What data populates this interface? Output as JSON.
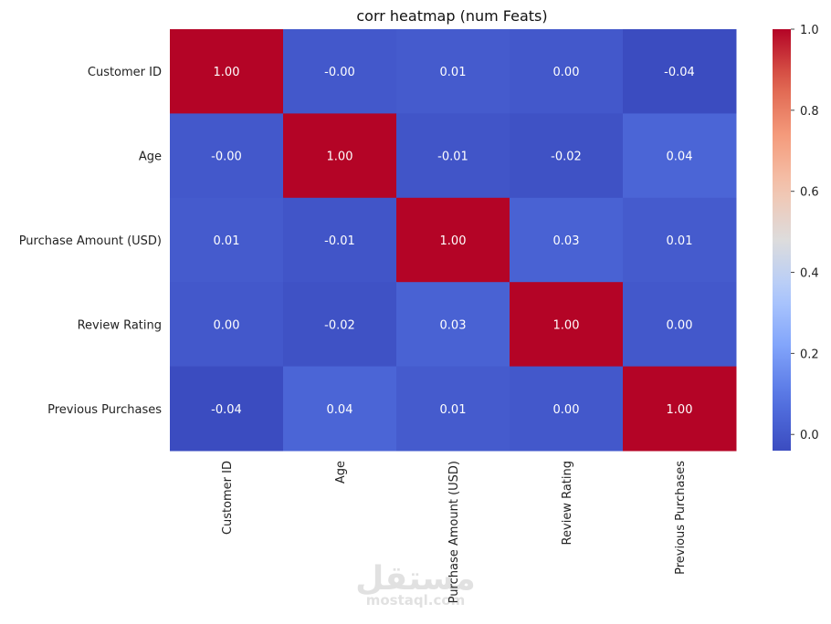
{
  "chart_data": {
    "type": "heatmap",
    "title": "corr heatmap (num Feats)",
    "row_labels": [
      "Customer ID",
      "Age",
      "Purchase Amount (USD)",
      "Review Rating",
      "Previous Purchases"
    ],
    "col_labels": [
      "Customer ID",
      "Age",
      "Purchase Amount (USD)",
      "Review Rating",
      "Previous Purchases"
    ],
    "values": [
      [
        1.0,
        -0.0,
        0.01,
        0.0,
        -0.04
      ],
      [
        -0.0,
        1.0,
        -0.01,
        -0.02,
        0.04
      ],
      [
        0.01,
        -0.01,
        1.0,
        0.03,
        0.01
      ],
      [
        0.0,
        -0.02,
        0.03,
        1.0,
        0.0
      ],
      [
        -0.04,
        0.04,
        0.01,
        0.0,
        1.0
      ]
    ],
    "annotations": [
      [
        "1.00",
        "-0.00",
        "0.01",
        "0.00",
        "-0.04"
      ],
      [
        "-0.00",
        "1.00",
        "-0.01",
        "-0.02",
        "0.04"
      ],
      [
        "0.01",
        "-0.01",
        "1.00",
        "0.03",
        "0.01"
      ],
      [
        "0.00",
        "-0.02",
        "0.03",
        "1.00",
        "0.00"
      ],
      [
        "-0.04",
        "0.04",
        "0.01",
        "0.00",
        "1.00"
      ]
    ],
    "colormap": "coolwarm",
    "colorbar": {
      "vmin": -0.04,
      "vmax": 1.0,
      "ticks": [
        0.0,
        0.2,
        0.4,
        0.6,
        0.8,
        1.0
      ],
      "tick_labels": [
        "0.0",
        "0.2",
        "0.4",
        "0.6",
        "0.8",
        "1.0"
      ]
    }
  },
  "watermark": {
    "text_main": "مستقل",
    "text_sub": "mostaql.com"
  }
}
